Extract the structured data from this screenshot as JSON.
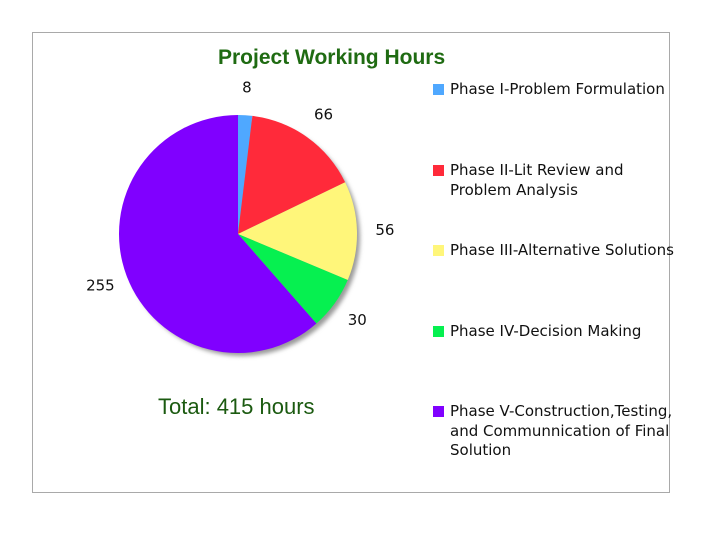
{
  "chart_data": {
    "type": "pie",
    "title": "Project Working Hours",
    "categories": [
      "Phase I-Problem Formulation",
      "Phase II-Lit Review and Problem Analysis",
      "Phase III-Alternative Solutions",
      "Phase IV-Decision Making",
      "Phase V-Construction,Testing, and Communnication of Final Solution"
    ],
    "values": [
      8,
      66,
      56,
      30,
      255
    ],
    "data_labels": [
      "8",
      "66",
      "56",
      "30",
      "255"
    ],
    "colors": [
      "#4fa8ff",
      "#ff2a3a",
      "#fff67a",
      "#06f050",
      "#8000ff"
    ],
    "legend_position": "right",
    "annotation": "Total: 415 hours"
  },
  "legend": {
    "items": [
      {
        "label": "Phase I-Problem Formulation",
        "color": "#4fa8ff"
      },
      {
        "label": "Phase II-Lit Review and Problem Analysis",
        "color": "#ff2a3a"
      },
      {
        "label": "Phase III-Alternative Solutions",
        "color": "#fff67a"
      },
      {
        "label": "Phase IV-Decision Making",
        "color": "#06f050"
      },
      {
        "label": "Phase V-Construction,Testing, and Communnication of Final Solution",
        "color": "#8000ff"
      }
    ]
  }
}
